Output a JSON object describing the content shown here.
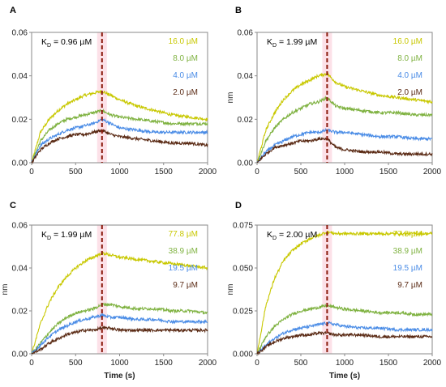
{
  "colors": {
    "s1": "#c8c800",
    "s2": "#7fb241",
    "s3": "#4a8ce6",
    "s4": "#5a2a14",
    "dash": "#8b1a0c",
    "shade": "#fbd7e0"
  },
  "chart_data": [
    {
      "type": "line",
      "panel_label": "A",
      "kd_prefix": "K",
      "kd_sub": "D",
      "kd_value": " = 0.96 µM",
      "xlim": [
        0,
        2000
      ],
      "ylim": [
        0,
        0.06
      ],
      "xticks": [
        "0",
        "500",
        "1000",
        "1500",
        "2000"
      ],
      "yticks": [
        "0.00",
        "0.02",
        "0.04",
        "0.06"
      ],
      "xlabel": "",
      "ylabel": "",
      "dissociation_start_s": 800,
      "series": [
        {
          "name": "16.0 µM",
          "color_key": "s1",
          "x": [
            0,
            100,
            200,
            300,
            400,
            500,
            600,
            700,
            800,
            900,
            1000,
            1200,
            1400,
            1600,
            1800,
            2000
          ],
          "y": [
            0,
            0.014,
            0.02,
            0.024,
            0.027,
            0.029,
            0.031,
            0.032,
            0.033,
            0.031,
            0.029,
            0.026,
            0.024,
            0.022,
            0.021,
            0.02
          ]
        },
        {
          "name": "8.0 µM",
          "color_key": "s2",
          "x": [
            0,
            100,
            200,
            300,
            400,
            500,
            600,
            700,
            800,
            900,
            1000,
            1200,
            1400,
            1600,
            1800,
            2000
          ],
          "y": [
            0,
            0.01,
            0.015,
            0.018,
            0.02,
            0.021,
            0.022,
            0.023,
            0.024,
            0.022,
            0.021,
            0.02,
            0.019,
            0.018,
            0.018,
            0.018
          ]
        },
        {
          "name": "4.0 µM",
          "color_key": "s3",
          "x": [
            0,
            100,
            200,
            300,
            400,
            500,
            600,
            700,
            800,
            900,
            1000,
            1200,
            1400,
            1600,
            1800,
            2000
          ],
          "y": [
            0,
            0.008,
            0.011,
            0.013,
            0.015,
            0.016,
            0.017,
            0.018,
            0.02,
            0.018,
            0.016,
            0.015,
            0.014,
            0.014,
            0.014,
            0.014
          ]
        },
        {
          "name": "2.0 µM",
          "color_key": "s4",
          "x": [
            0,
            100,
            200,
            300,
            400,
            500,
            600,
            700,
            800,
            900,
            1000,
            1200,
            1400,
            1600,
            1800,
            2000
          ],
          "y": [
            0,
            0.006,
            0.009,
            0.011,
            0.012,
            0.013,
            0.013,
            0.014,
            0.015,
            0.013,
            0.012,
            0.011,
            0.01,
            0.009,
            0.009,
            0.008
          ]
        }
      ]
    },
    {
      "type": "line",
      "panel_label": "B",
      "kd_prefix": "K",
      "kd_sub": "D",
      "kd_value": " = 1.99 µM",
      "xlim": [
        0,
        2000
      ],
      "ylim": [
        0,
        0.06
      ],
      "xticks": [
        "0",
        "500",
        "1000",
        "1500",
        "2000"
      ],
      "yticks": [
        "0.00",
        "0.02",
        "0.04",
        "0.06"
      ],
      "xlabel": "",
      "ylabel": "nm",
      "dissociation_start_s": 800,
      "series": [
        {
          "name": "16.0 µM",
          "color_key": "s1",
          "x": [
            0,
            100,
            200,
            300,
            400,
            500,
            600,
            700,
            800,
            900,
            1000,
            1200,
            1400,
            1600,
            1800,
            2000
          ],
          "y": [
            0,
            0.015,
            0.023,
            0.029,
            0.033,
            0.036,
            0.038,
            0.04,
            0.041,
            0.037,
            0.035,
            0.033,
            0.031,
            0.03,
            0.029,
            0.028
          ]
        },
        {
          "name": "8.0 µM",
          "color_key": "s2",
          "x": [
            0,
            100,
            200,
            300,
            400,
            500,
            600,
            700,
            800,
            900,
            1000,
            1200,
            1400,
            1600,
            1800,
            2000
          ],
          "y": [
            0,
            0.01,
            0.016,
            0.02,
            0.023,
            0.025,
            0.027,
            0.028,
            0.03,
            0.026,
            0.025,
            0.024,
            0.023,
            0.023,
            0.022,
            0.022
          ]
        },
        {
          "name": "4.0 µM",
          "color_key": "s3",
          "x": [
            0,
            100,
            200,
            300,
            400,
            500,
            600,
            700,
            800,
            900,
            1000,
            1200,
            1400,
            1600,
            1800,
            2000
          ],
          "y": [
            0,
            0.005,
            0.008,
            0.01,
            0.012,
            0.013,
            0.014,
            0.014,
            0.015,
            0.014,
            0.014,
            0.013,
            0.012,
            0.012,
            0.011,
            0.011
          ]
        },
        {
          "name": "2.0 µM",
          "color_key": "s4",
          "x": [
            0,
            100,
            200,
            300,
            400,
            500,
            600,
            700,
            800,
            900,
            1000,
            1200,
            1400,
            1600,
            1800,
            2000
          ],
          "y": [
            0,
            0.004,
            0.007,
            0.008,
            0.009,
            0.01,
            0.01,
            0.011,
            0.011,
            0.007,
            0.006,
            0.005,
            0.005,
            0.004,
            0.004,
            0.004
          ]
        }
      ]
    },
    {
      "type": "line",
      "panel_label": "C",
      "kd_prefix": "K",
      "kd_sub": "D",
      "kd_value": " = 1.99 µM",
      "xlim": [
        0,
        2000
      ],
      "ylim": [
        0,
        0.06
      ],
      "xticks": [
        "0",
        "500",
        "1000",
        "1500",
        "2000"
      ],
      "yticks": [
        "0.00",
        "0.02",
        "0.04",
        "0.06"
      ],
      "xlabel": "Time (s)",
      "ylabel": "nm",
      "dissociation_start_s": 800,
      "series": [
        {
          "name": "77.8 µM",
          "color_key": "s1",
          "x": [
            0,
            100,
            200,
            300,
            400,
            500,
            600,
            700,
            800,
            900,
            1000,
            1200,
            1400,
            1600,
            1800,
            2000
          ],
          "y": [
            0,
            0.014,
            0.024,
            0.031,
            0.036,
            0.04,
            0.043,
            0.045,
            0.047,
            0.046,
            0.045,
            0.044,
            0.043,
            0.042,
            0.041,
            0.04
          ]
        },
        {
          "name": "38.9 µM",
          "color_key": "s2",
          "x": [
            0,
            100,
            200,
            300,
            400,
            500,
            600,
            700,
            800,
            900,
            1000,
            1200,
            1400,
            1600,
            1800,
            2000
          ],
          "y": [
            0,
            0.005,
            0.01,
            0.014,
            0.017,
            0.019,
            0.02,
            0.021,
            0.023,
            0.023,
            0.022,
            0.021,
            0.021,
            0.02,
            0.02,
            0.019
          ]
        },
        {
          "name": "19.5 µM",
          "color_key": "s3",
          "x": [
            0,
            100,
            200,
            300,
            400,
            500,
            600,
            700,
            800,
            900,
            1000,
            1200,
            1400,
            1600,
            1800,
            2000
          ],
          "y": [
            0,
            0.004,
            0.008,
            0.011,
            0.013,
            0.015,
            0.016,
            0.017,
            0.018,
            0.017,
            0.017,
            0.016,
            0.016,
            0.015,
            0.015,
            0.015
          ]
        },
        {
          "name": "9.7 µM",
          "color_key": "s4",
          "x": [
            0,
            100,
            200,
            300,
            400,
            500,
            600,
            700,
            800,
            900,
            1000,
            1200,
            1400,
            1600,
            1800,
            2000
          ],
          "y": [
            0,
            0.002,
            0.005,
            0.007,
            0.009,
            0.01,
            0.011,
            0.011,
            0.012,
            0.012,
            0.011,
            0.011,
            0.011,
            0.011,
            0.011,
            0.011
          ]
        }
      ]
    },
    {
      "type": "line",
      "panel_label": "D",
      "kd_prefix": "K",
      "kd_sub": "D",
      "kd_value": " = 2.00 µM",
      "xlim": [
        0,
        2000
      ],
      "ylim": [
        0,
        0.075
      ],
      "xticks": [
        "0",
        "500",
        "1000",
        "1500",
        "2000"
      ],
      "yticks": [
        "0.000",
        "0.025",
        "0.050",
        "0.075"
      ],
      "xlabel": "Time (s)",
      "ylabel": "nm",
      "dissociation_start_s": 800,
      "series": [
        {
          "name": "77.8 µM",
          "color_key": "s1",
          "x": [
            0,
            100,
            200,
            300,
            400,
            500,
            600,
            700,
            800,
            900,
            1000,
            1200,
            1400,
            1600,
            1800,
            2000
          ],
          "y": [
            0,
            0.028,
            0.044,
            0.054,
            0.06,
            0.064,
            0.067,
            0.069,
            0.071,
            0.07,
            0.07,
            0.07,
            0.07,
            0.07,
            0.07,
            0.07
          ]
        },
        {
          "name": "38.9 µM",
          "color_key": "s2",
          "x": [
            0,
            100,
            200,
            300,
            400,
            500,
            600,
            700,
            800,
            900,
            1000,
            1200,
            1400,
            1600,
            1800,
            2000
          ],
          "y": [
            0,
            0.01,
            0.016,
            0.02,
            0.023,
            0.025,
            0.026,
            0.027,
            0.028,
            0.027,
            0.026,
            0.025,
            0.024,
            0.024,
            0.023,
            0.023
          ]
        },
        {
          "name": "19.5 µM",
          "color_key": "s3",
          "x": [
            0,
            100,
            200,
            300,
            400,
            500,
            600,
            700,
            800,
            900,
            1000,
            1200,
            1400,
            1600,
            1800,
            2000
          ],
          "y": [
            0,
            0.005,
            0.009,
            0.012,
            0.014,
            0.015,
            0.016,
            0.017,
            0.018,
            0.017,
            0.016,
            0.015,
            0.015,
            0.014,
            0.014,
            0.014
          ]
        },
        {
          "name": "9.7 µM",
          "color_key": "s4",
          "x": [
            0,
            100,
            200,
            300,
            400,
            500,
            600,
            700,
            800,
            900,
            1000,
            1200,
            1400,
            1600,
            1800,
            2000
          ],
          "y": [
            0,
            0.004,
            0.007,
            0.009,
            0.01,
            0.011,
            0.011,
            0.012,
            0.012,
            0.011,
            0.011,
            0.011,
            0.01,
            0.01,
            0.01,
            0.01
          ]
        }
      ]
    }
  ]
}
